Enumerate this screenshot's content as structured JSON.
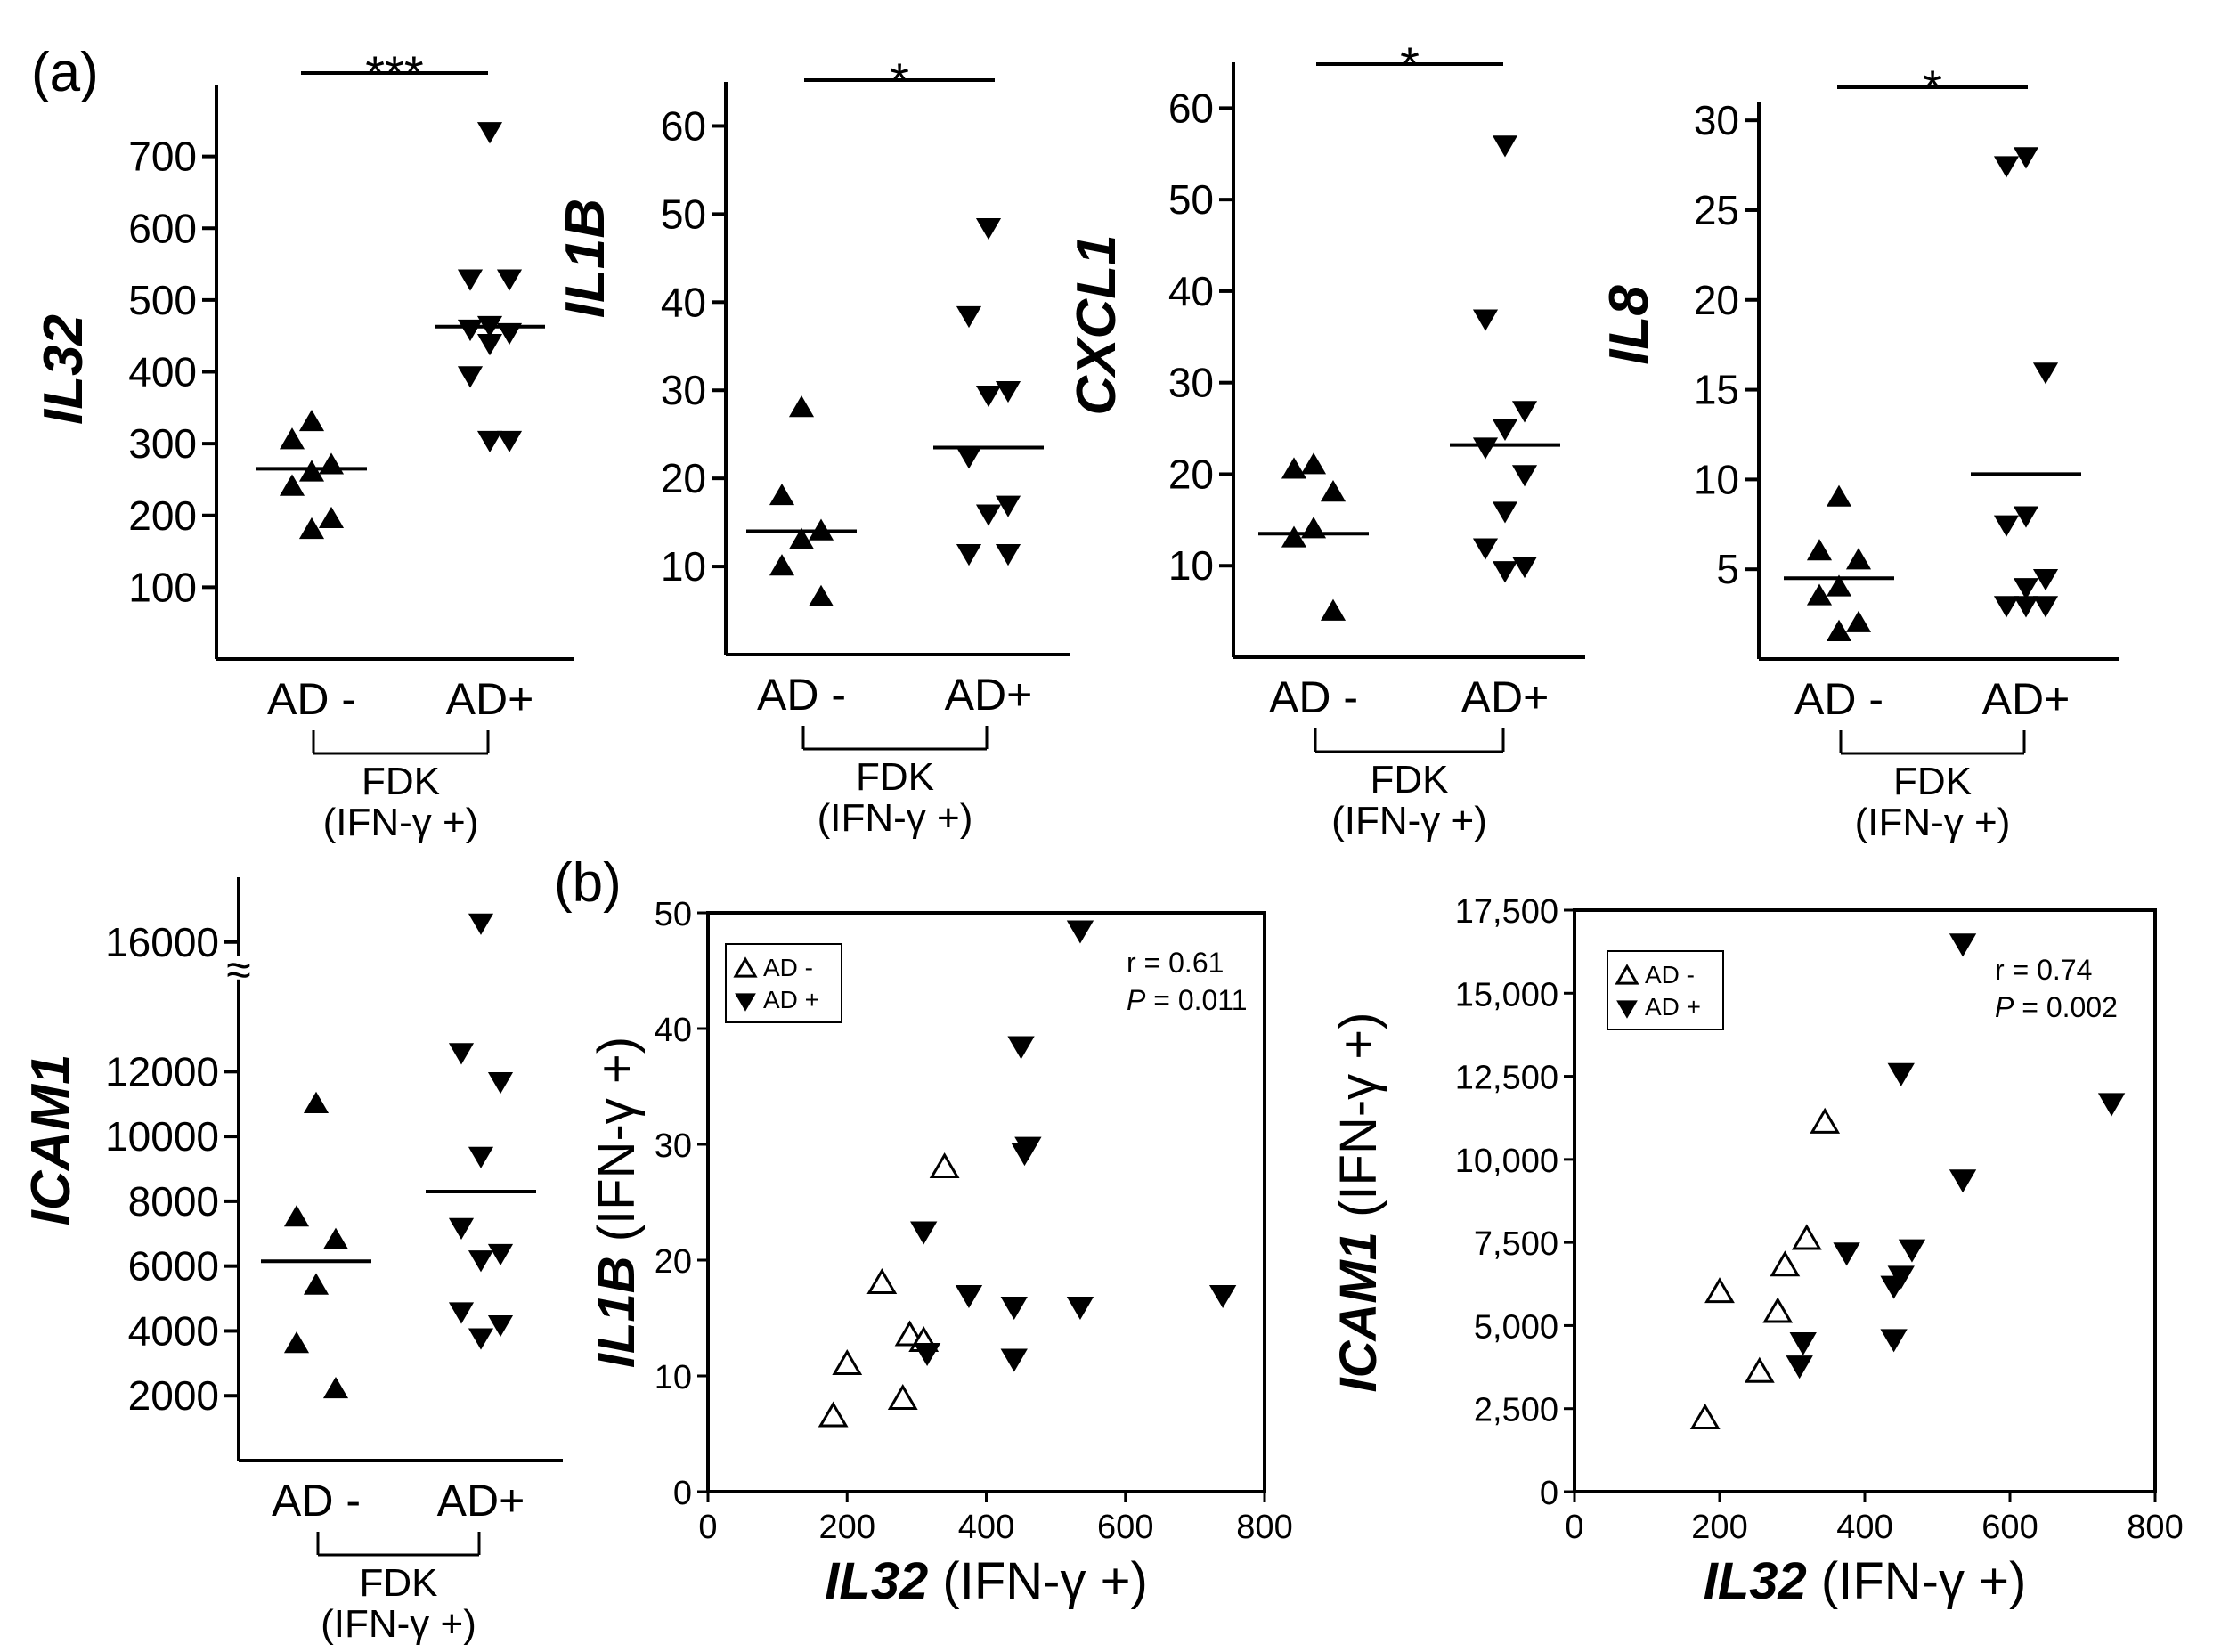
{
  "figure": {
    "panel_a_label": "(a)",
    "panel_b_label": "(b)",
    "colors": {
      "ink": "#000000",
      "background": "#ffffff"
    },
    "group_common": {
      "categories": [
        "AD -",
        "AD+"
      ],
      "bracket_line1": "FDK",
      "bracket_line2": "(IFN-γ +)"
    },
    "legend": {
      "open_triangle_label": "AD -",
      "filled_triangle_label": "AD +",
      "open_icon": "open-triangle-up-icon",
      "filled_icon": "filled-triangle-down-icon"
    }
  },
  "chart_data": [
    {
      "id": "il32",
      "type": "scatter",
      "ylabel": "IL32",
      "ylim": [
        0,
        800
      ],
      "yticks": [
        100,
        200,
        300,
        400,
        500,
        600,
        700
      ],
      "significance": "***",
      "groups": [
        {
          "name": "AD -",
          "marker": "filled-triangle-up",
          "mean": 265,
          "values": [
            330,
            305,
            270,
            260,
            240,
            195,
            180
          ]
        },
        {
          "name": "AD+",
          "marker": "filled-triangle-down",
          "mean": 463,
          "values": [
            735,
            530,
            530,
            465,
            460,
            455,
            440,
            395,
            305,
            305
          ]
        }
      ]
    },
    {
      "id": "il1b",
      "type": "scatter",
      "ylabel": "IL1B",
      "ylim": [
        0,
        65
      ],
      "yticks": [
        10,
        20,
        30,
        40,
        50,
        60
      ],
      "significance": "*",
      "groups": [
        {
          "name": "AD -",
          "marker": "filled-triangle-up",
          "mean": 14,
          "values": [
            28,
            18,
            14,
            13,
            10,
            6.5
          ]
        },
        {
          "name": "AD+",
          "marker": "filled-triangle-down",
          "mean": 23.5,
          "values": [
            48.5,
            38.5,
            30,
            29.5,
            22.5,
            17,
            16,
            11.5,
            11.5
          ]
        }
      ]
    },
    {
      "id": "cxcl1",
      "type": "scatter",
      "ylabel": "CXCL1",
      "ylim": [
        0,
        65
      ],
      "yticks": [
        10,
        20,
        30,
        40,
        50,
        60
      ],
      "significance": "*",
      "groups": [
        {
          "name": "AD -",
          "marker": "filled-triangle-up",
          "mean": 13.5,
          "values": [
            21,
            20.5,
            18,
            14,
            13,
            5
          ]
        },
        {
          "name": "AD+",
          "marker": "filled-triangle-down",
          "mean": 23.2,
          "values": [
            56,
            37,
            27,
            25,
            23,
            20,
            16,
            12,
            10,
            9.5
          ]
        }
      ]
    },
    {
      "id": "il8",
      "type": "scatter",
      "ylabel": "IL8",
      "ylim": [
        0,
        31
      ],
      "yticks": [
        5,
        10,
        15,
        20,
        25,
        30
      ],
      "significance": "*",
      "groups": [
        {
          "name": "AD -",
          "marker": "filled-triangle-up",
          "mean": 4.5,
          "values": [
            9,
            6,
            5.5,
            4,
            3.5,
            2,
            1.5
          ]
        },
        {
          "name": "AD+",
          "marker": "filled-triangle-down",
          "mean": 10.3,
          "values": [
            28,
            27.5,
            16,
            8,
            7.5,
            4.5,
            4,
            3,
            3,
            3
          ]
        }
      ]
    },
    {
      "id": "icam1",
      "type": "scatter",
      "ylabel": "ICAM1",
      "ylim": [
        0,
        18000
      ],
      "yticks": [
        2000,
        4000,
        6000,
        8000,
        10000,
        12000,
        16000
      ],
      "axis_break": "≈",
      "significance": "",
      "groups": [
        {
          "name": "AD -",
          "marker": "filled-triangle-up",
          "mean": 6150,
          "values": [
            11000,
            7500,
            6800,
            5400,
            3600,
            2200
          ]
        },
        {
          "name": "AD+",
          "marker": "filled-triangle-down",
          "mean": 8300,
          "values": [
            16600,
            12600,
            11700,
            9400,
            7200,
            6400,
            6200,
            4600,
            4200,
            3800
          ]
        }
      ]
    },
    {
      "id": "corr_il1b",
      "type": "scatter",
      "xlabel_italic": "IL32",
      "xlabel_rest": "(IFN-γ +)",
      "ylabel_italic": "IL1B",
      "ylabel_rest": "(IFN-γ +)",
      "xlim": [
        0,
        800
      ],
      "ylim": [
        0,
        50
      ],
      "xticks": [
        0,
        200,
        400,
        600,
        800
      ],
      "yticks": [
        0,
        10,
        20,
        30,
        40,
        50
      ],
      "stat_r": "r = 0.61",
      "stat_p_label": "P",
      "stat_p_value": "= 0.011",
      "series": [
        {
          "name": "AD -",
          "marker": "open-triangle-up",
          "x": [
            180,
            200,
            250,
            280,
            290,
            310,
            340
          ],
          "y": [
            6.5,
            11,
            18,
            8,
            13.5,
            13,
            28
          ]
        },
        {
          "name": "AD +",
          "marker": "filled-triangle-down",
          "x": [
            535,
            450,
            460,
            455,
            310,
            315,
            375,
            440,
            440,
            535,
            740
          ],
          "y": [
            48.5,
            38.5,
            29.8,
            29.3,
            22.5,
            12,
            17,
            16,
            11.5,
            16,
            17
          ]
        }
      ]
    },
    {
      "id": "corr_icam1",
      "type": "scatter",
      "xlabel_italic": "IL32",
      "xlabel_rest": "(IFN-γ +)",
      "ylabel_italic": "ICAM1",
      "ylabel_rest": "(IFN-γ +)",
      "xlim": [
        0,
        800
      ],
      "ylim": [
        0,
        17500
      ],
      "xticks": [
        0,
        200,
        400,
        600,
        800
      ],
      "yticks": [
        0,
        2500,
        5000,
        7500,
        10000,
        12500,
        15000,
        17500
      ],
      "ytick_labels": [
        "0",
        "2,500",
        "5,000",
        "7,500",
        "10,000",
        "12,500",
        "15,000",
        "17,500"
      ],
      "stat_r": "r = 0.74",
      "stat_p_label": "P",
      "stat_p_value": "= 0.002",
      "series": [
        {
          "name": "AD -",
          "marker": "open-triangle-up",
          "x": [
            180,
            200,
            255,
            280,
            290,
            320,
            345
          ],
          "y": [
            2200,
            6000,
            3600,
            5400,
            6800,
            7600,
            11100
          ]
        },
        {
          "name": "AD +",
          "marker": "filled-triangle-down",
          "x": [
            535,
            450,
            740,
            535,
            375,
            465,
            450,
            440,
            440,
            315,
            310
          ],
          "y": [
            16500,
            12600,
            11700,
            9400,
            7200,
            7300,
            6500,
            6200,
            4600,
            4500,
            3800
          ]
        }
      ]
    }
  ]
}
